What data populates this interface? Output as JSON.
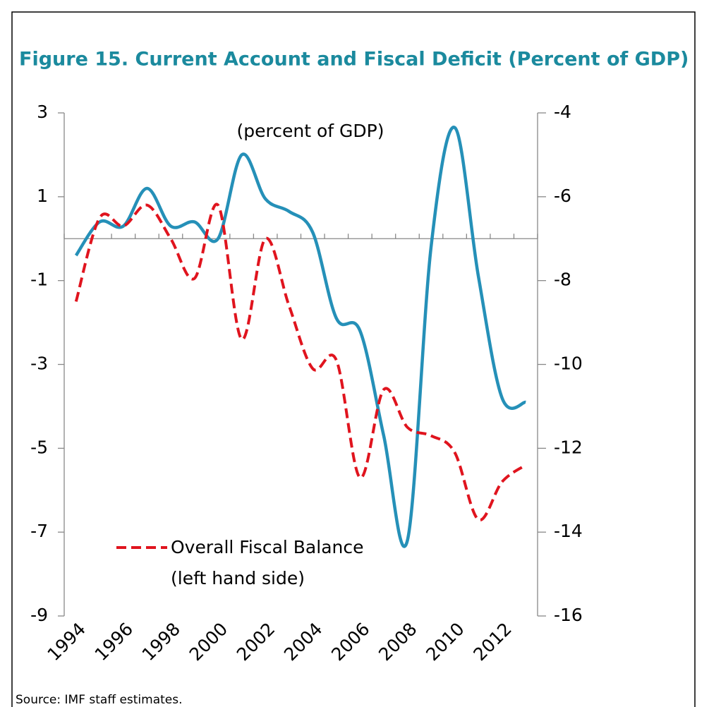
{
  "chart_data": {
    "type": "line",
    "title": "Figure 15. Current Account and Fiscal Deficit (Percent of GDP)",
    "annotation": "(percent of GDP)",
    "source": "Source: IMF staff estimates.",
    "categories": [
      "1994",
      null,
      "1996",
      null,
      "1998",
      null,
      "2000",
      null,
      "2002",
      null,
      "2004",
      null,
      "2006",
      null,
      "2008",
      null,
      "2010",
      null,
      "2012",
      null
    ],
    "series": [
      {
        "name": "Overall Fiscal Balance (left hand side)",
        "color": "#e0141e",
        "dash": true,
        "values": [
          -1.5,
          0.5,
          0.3,
          0.8,
          0.0,
          -0.95,
          0.8,
          -2.4,
          0.0,
          -1.6,
          -3.1,
          -2.9,
          -5.7,
          -3.6,
          -4.5,
          -4.7,
          -5.1,
          -6.7,
          -5.8,
          -5.4
        ]
      },
      {
        "color": "#2590b8",
        "axis": "y2",
        "values": [
          -7.4,
          -6.6,
          -6.7,
          -5.8,
          -6.7,
          -6.6,
          -7.0,
          -5.0,
          -6.05,
          -6.35,
          -6.85,
          -8.9,
          -9.2,
          -11.7,
          -14.2,
          -7.2,
          -4.35,
          -7.9,
          -10.8,
          -10.9
        ]
      }
    ],
    "ylim": [
      -9,
      3
    ],
    "yticks": [
      -9,
      -7,
      -5,
      -3,
      -1,
      1,
      3
    ],
    "y2lim": [
      -16,
      -4
    ],
    "y2ticks": [
      -16,
      -14,
      -12,
      -10,
      -8,
      -6,
      -4
    ],
    "legend": "lower-left"
  }
}
